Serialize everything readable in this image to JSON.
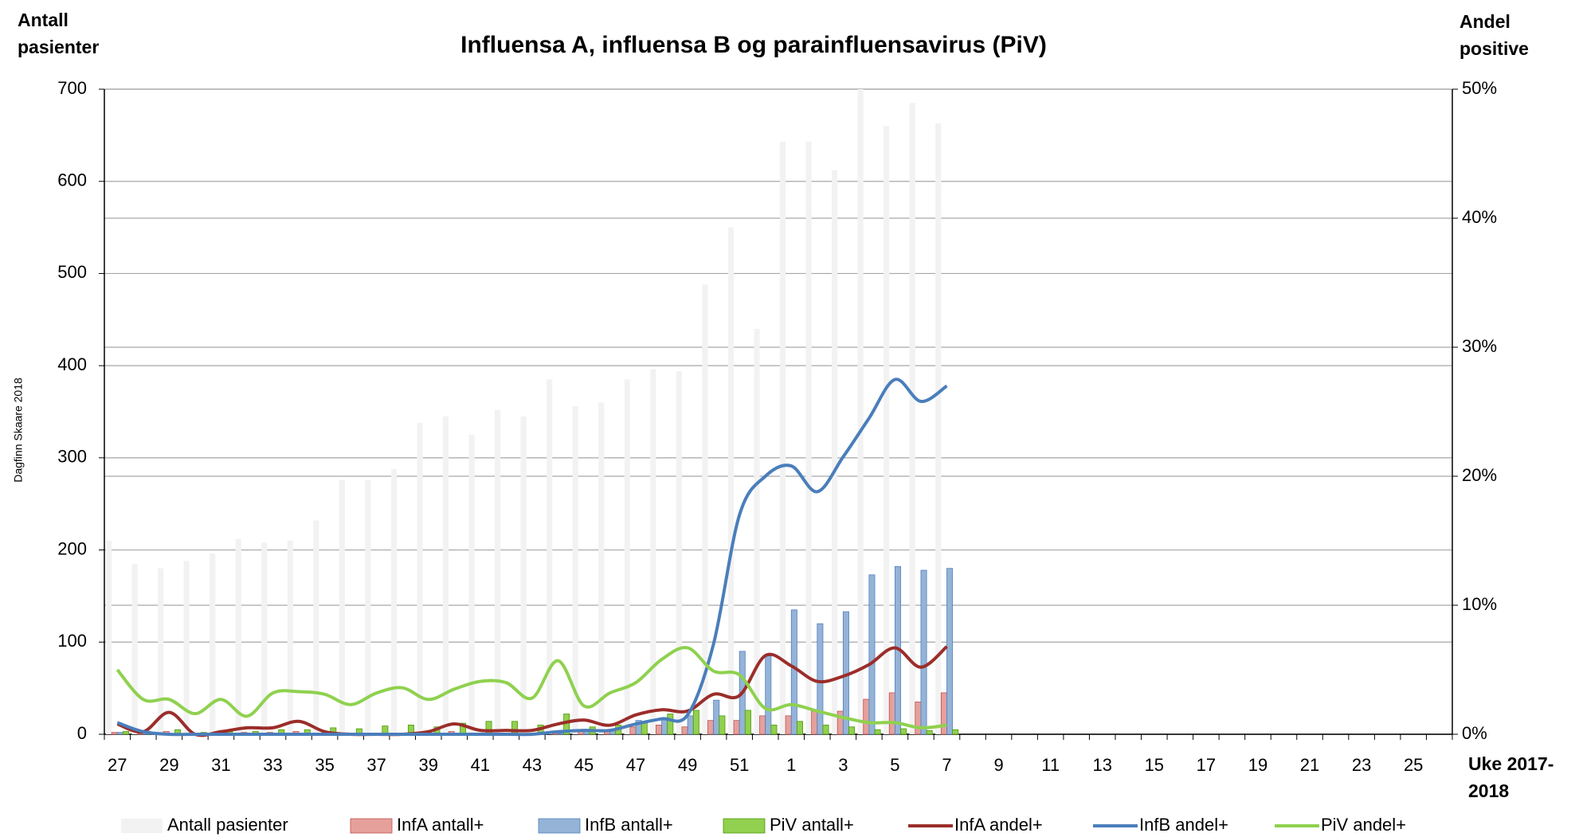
{
  "chart_data": {
    "type": "bar",
    "title": "Influensa A, influensa B og parainfluensavirus (PiV)",
    "y_label": "Antall pasienter",
    "y2_label": "Andel positive",
    "x_label": "Uke 2017-2018",
    "watermark": "Dagfinn Skaare 2018",
    "categories": [
      "27",
      null,
      "29",
      null,
      "31",
      null,
      "33",
      null,
      "35",
      null,
      "37",
      null,
      "39",
      null,
      "41",
      null,
      "43",
      null,
      "45",
      null,
      "47",
      null,
      "49",
      null,
      "51",
      null,
      "1",
      null,
      "3",
      null,
      "5",
      null,
      "7",
      null,
      "9",
      null,
      "11",
      null,
      "13",
      null,
      "15",
      null,
      "17",
      null,
      "19",
      null,
      "21",
      null,
      "23",
      null,
      "25",
      null
    ],
    "ylim": [
      0,
      700
    ],
    "yticks": [
      0,
      100,
      200,
      300,
      400,
      500,
      600,
      700
    ],
    "y2lim": [
      0,
      50
    ],
    "y2ticks": [
      {
        "value": 0,
        "label": "0%"
      },
      {
        "value": 10,
        "label": "10%"
      },
      {
        "value": 20,
        "label": "20%"
      },
      {
        "value": 30,
        "label": "30%"
      },
      {
        "value": 40,
        "label": "40%"
      },
      {
        "value": 50,
        "label": "50%"
      }
    ],
    "grid": true,
    "series": [
      {
        "name": "Antall pasienter",
        "type": "bar",
        "color": "#f2f2f2",
        "values": [
          210,
          185,
          180,
          188,
          196,
          212,
          208,
          210,
          232,
          276,
          276,
          288,
          338,
          345,
          325,
          352,
          345,
          385,
          356,
          360,
          385,
          396,
          394,
          488,
          550,
          440,
          643,
          643,
          612,
          700,
          660,
          685,
          663,
          null,
          null,
          null,
          null,
          null,
          null,
          null,
          null,
          null,
          null,
          null,
          null,
          null,
          null,
          null,
          null,
          null,
          null,
          null
        ]
      },
      {
        "name": "InfA antall+",
        "type": "bar",
        "color": "#e6a09c",
        "values": [
          2,
          1,
          3,
          0,
          1,
          2,
          2,
          3,
          1,
          0,
          0,
          0,
          1,
          3,
          1,
          1,
          1,
          3,
          5,
          3,
          8,
          10,
          8,
          15,
          15,
          20,
          20,
          25,
          25,
          38,
          45,
          35,
          45,
          null,
          null,
          null,
          null,
          null,
          null,
          null,
          null,
          null,
          null,
          null,
          null,
          null,
          null,
          null,
          null,
          null,
          null,
          null
        ]
      },
      {
        "name": "InfB antall+",
        "type": "bar",
        "color": "#95b3d7",
        "values": [
          2,
          1,
          0,
          0,
          0,
          0,
          0,
          0,
          0,
          0,
          0,
          0,
          0,
          0,
          0,
          0,
          0,
          1,
          3,
          5,
          15,
          18,
          20,
          37,
          90,
          85,
          135,
          120,
          133,
          173,
          182,
          178,
          180,
          null,
          null,
          null,
          null,
          null,
          null,
          null,
          null,
          null,
          null,
          null,
          null,
          null,
          null,
          null,
          null,
          null,
          null,
          null
        ]
      },
      {
        "name": "PiV antall+",
        "type": "bar",
        "color": "#92d050",
        "values": [
          3,
          2,
          5,
          2,
          3,
          3,
          5,
          5,
          7,
          6,
          9,
          10,
          8,
          12,
          14,
          14,
          10,
          22,
          8,
          10,
          14,
          22,
          26,
          20,
          26,
          10,
          14,
          10,
          8,
          5,
          6,
          4,
          5,
          null,
          null,
          null,
          null,
          null,
          null,
          null,
          null,
          null,
          null,
          null,
          null,
          null,
          null,
          null,
          null,
          null,
          null,
          null
        ]
      },
      {
        "name": "InfA andel+",
        "type": "line",
        "axis": "y2",
        "color": "#9b2d2a",
        "values": [
          0.8,
          0.2,
          1.7,
          0,
          0.2,
          0.5,
          0.5,
          1,
          0.2,
          0,
          0,
          0,
          0.2,
          0.8,
          0.3,
          0.3,
          0.3,
          0.8,
          1.1,
          0.7,
          1.5,
          1.9,
          1.8,
          3.1,
          3.0,
          6.1,
          5.3,
          4.1,
          4.5,
          5.4,
          6.7,
          5.2,
          6.8,
          null,
          null,
          null,
          null,
          null,
          null,
          null,
          null,
          null,
          null,
          null,
          null,
          null,
          null,
          null,
          null,
          null,
          null,
          null
        ]
      },
      {
        "name": "InfB andel+",
        "type": "line",
        "axis": "y2",
        "color": "#4a7ebb",
        "values": [
          0.9,
          0.2,
          0,
          0,
          0,
          0,
          0,
          0,
          0,
          0,
          0,
          0,
          0,
          0,
          0,
          0,
          0,
          0.2,
          0.3,
          0.3,
          0.8,
          1.2,
          1.5,
          7,
          17,
          20,
          20.8,
          18.8,
          21.5,
          24.5,
          27.5,
          25.8,
          27.0,
          null,
          null,
          null,
          null,
          null,
          null,
          null,
          null,
          null,
          null,
          null,
          null,
          null,
          null,
          null,
          null,
          null,
          null,
          null
        ]
      },
      {
        "name": "PiV andel+",
        "type": "line",
        "axis": "y2",
        "color": "#8fd14f",
        "values": [
          5.0,
          2.7,
          2.7,
          1.6,
          2.7,
          1.4,
          3.2,
          3.3,
          3.1,
          2.3,
          3.2,
          3.6,
          2.7,
          3.5,
          4.1,
          4.0,
          2.8,
          5.7,
          2.2,
          3.2,
          4.0,
          5.8,
          6.7,
          4.9,
          4.6,
          2.0,
          2.3,
          1.8,
          1.3,
          0.9,
          0.9,
          0.5,
          0.7,
          null,
          null,
          null,
          null,
          null,
          null,
          null,
          null,
          null,
          null,
          null,
          null,
          null,
          null,
          null,
          null,
          null,
          null,
          null
        ]
      }
    ]
  }
}
